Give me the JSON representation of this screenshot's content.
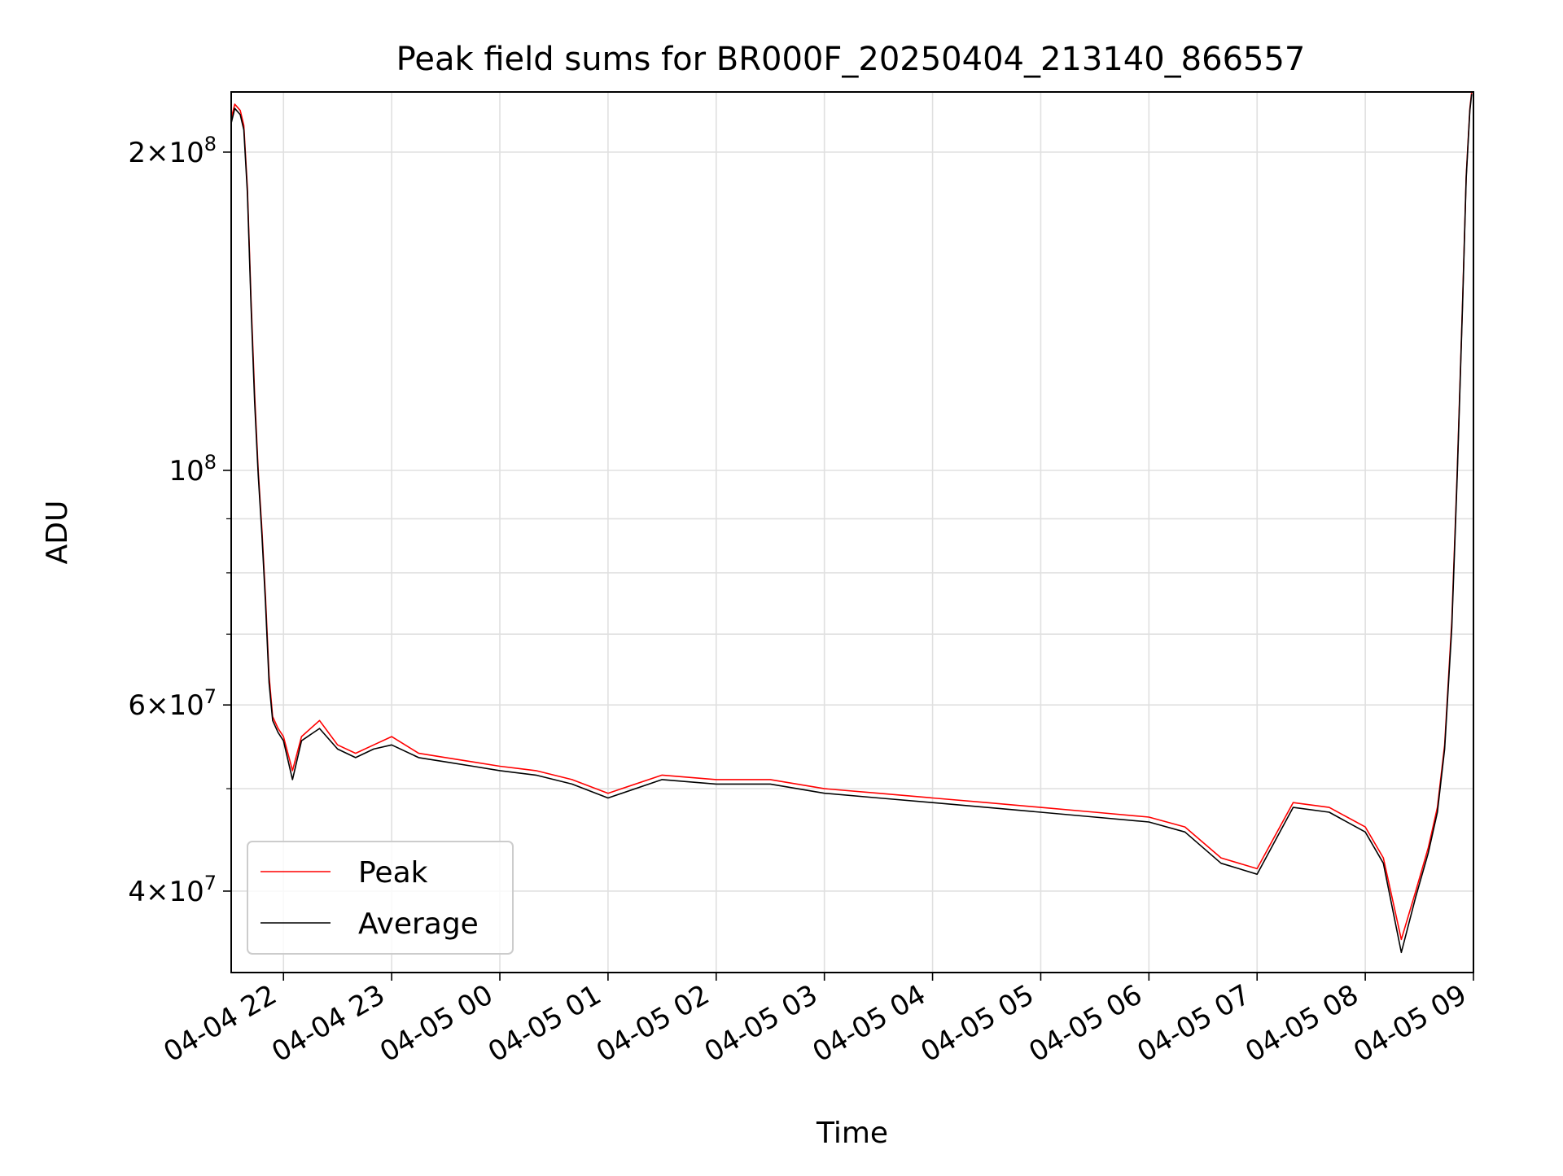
{
  "chart_data": {
    "type": "line",
    "title": "Peak field sums for BR000F_20250404_213140_866557",
    "xlabel": "Time",
    "ylabel": "ADU",
    "x_range": [
      "2025-04-04 21:31",
      "2025-04-05 09:00"
    ],
    "y_scale": "log",
    "ylim": [
      33500000,
      228000000
    ],
    "x_ticks": [
      "04-04 22",
      "04-04 23",
      "04-05 00",
      "04-05 01",
      "04-05 02",
      "04-05 03",
      "04-05 04",
      "04-05 05",
      "04-05 06",
      "04-05 07",
      "04-05 08",
      "04-05 09"
    ],
    "x_tick_times": [
      "2025-04-04 22:00",
      "2025-04-04 23:00",
      "2025-04-05 00:00",
      "2025-04-05 01:00",
      "2025-04-05 02:00",
      "2025-04-05 03:00",
      "2025-04-05 04:00",
      "2025-04-05 05:00",
      "2025-04-05 06:00",
      "2025-04-05 07:00",
      "2025-04-05 08:00",
      "2025-04-05 09:00"
    ],
    "y_ticks": [
      {
        "value": 200000000,
        "mant": "2",
        "exp": "8"
      },
      {
        "value": 100000000,
        "mant": "",
        "exp": "8"
      },
      {
        "value": 60000000,
        "mant": "6",
        "exp": "7"
      },
      {
        "value": 40000000,
        "mant": "4",
        "exp": "7"
      }
    ],
    "y_minor_ticks": [
      90000000,
      80000000,
      70000000,
      50000000
    ],
    "grid": true,
    "legend_position": "lower-left",
    "series": [
      {
        "name": "Peak",
        "color": "#ff0000",
        "points": [
          [
            "2025-04-04 21:31",
            215000000
          ],
          [
            "2025-04-04 21:33",
            222000000
          ],
          [
            "2025-04-04 21:36",
            219000000
          ],
          [
            "2025-04-04 21:38",
            212000000
          ],
          [
            "2025-04-04 21:40",
            185000000
          ],
          [
            "2025-04-04 21:42",
            145000000
          ],
          [
            "2025-04-04 21:44",
            118000000
          ],
          [
            "2025-04-04 21:46",
            100000000
          ],
          [
            "2025-04-04 21:48",
            88000000
          ],
          [
            "2025-04-04 21:50",
            76000000
          ],
          [
            "2025-04-04 21:52",
            64000000
          ],
          [
            "2025-04-04 21:54",
            58500000
          ],
          [
            "2025-04-04 21:57",
            57000000
          ],
          [
            "2025-04-04 22:00",
            56000000
          ],
          [
            "2025-04-04 22:05",
            52000000
          ],
          [
            "2025-04-04 22:10",
            56000000
          ],
          [
            "2025-04-04 22:20",
            58000000
          ],
          [
            "2025-04-04 22:30",
            55000000
          ],
          [
            "2025-04-04 22:40",
            54000000
          ],
          [
            "2025-04-04 22:50",
            55000000
          ],
          [
            "2025-04-04 23:00",
            56000000
          ],
          [
            "2025-04-04 23:15",
            54000000
          ],
          [
            "2025-04-04 23:30",
            53500000
          ],
          [
            "2025-04-04 23:45",
            53000000
          ],
          [
            "2025-04-05 00:00",
            52500000
          ],
          [
            "2025-04-05 00:20",
            52000000
          ],
          [
            "2025-04-05 00:40",
            51000000
          ],
          [
            "2025-04-05 01:00",
            49500000
          ],
          [
            "2025-04-05 01:30",
            51500000
          ],
          [
            "2025-04-05 02:00",
            51000000
          ],
          [
            "2025-04-05 02:30",
            51000000
          ],
          [
            "2025-04-05 03:00",
            50000000
          ],
          [
            "2025-04-05 03:30",
            49500000
          ],
          [
            "2025-04-05 04:00",
            49000000
          ],
          [
            "2025-04-05 04:30",
            48500000
          ],
          [
            "2025-04-05 05:00",
            48000000
          ],
          [
            "2025-04-05 05:30",
            47500000
          ],
          [
            "2025-04-05 06:00",
            47000000
          ],
          [
            "2025-04-05 06:20",
            46000000
          ],
          [
            "2025-04-05 06:40",
            43000000
          ],
          [
            "2025-04-05 07:00",
            42000000
          ],
          [
            "2025-04-05 07:20",
            48500000
          ],
          [
            "2025-04-05 07:40",
            48000000
          ],
          [
            "2025-04-05 08:00",
            46000000
          ],
          [
            "2025-04-05 08:10",
            43000000
          ],
          [
            "2025-04-05 08:20",
            36000000
          ],
          [
            "2025-04-05 08:28",
            40000000
          ],
          [
            "2025-04-05 08:35",
            44000000
          ],
          [
            "2025-04-05 08:40",
            48000000
          ],
          [
            "2025-04-05 08:44",
            55000000
          ],
          [
            "2025-04-05 08:48",
            72000000
          ],
          [
            "2025-04-05 08:51",
            100000000
          ],
          [
            "2025-04-05 08:54",
            145000000
          ],
          [
            "2025-04-05 08:56",
            190000000
          ],
          [
            "2025-04-05 08:58",
            220000000
          ],
          [
            "2025-04-05 08:59",
            228000000
          ]
        ]
      },
      {
        "name": "Average",
        "color": "#000000",
        "points": [
          [
            "2025-04-04 21:31",
            213000000
          ],
          [
            "2025-04-04 21:33",
            220000000
          ],
          [
            "2025-04-04 21:36",
            217000000
          ],
          [
            "2025-04-04 21:38",
            210000000
          ],
          [
            "2025-04-04 21:40",
            183000000
          ],
          [
            "2025-04-04 21:42",
            143000000
          ],
          [
            "2025-04-04 21:44",
            116000000
          ],
          [
            "2025-04-04 21:46",
            99000000
          ],
          [
            "2025-04-04 21:48",
            87000000
          ],
          [
            "2025-04-04 21:50",
            75000000
          ],
          [
            "2025-04-04 21:52",
            63000000
          ],
          [
            "2025-04-04 21:54",
            58000000
          ],
          [
            "2025-04-04 21:57",
            56500000
          ],
          [
            "2025-04-04 22:00",
            55500000
          ],
          [
            "2025-04-04 22:05",
            51000000
          ],
          [
            "2025-04-04 22:10",
            55500000
          ],
          [
            "2025-04-04 22:20",
            57000000
          ],
          [
            "2025-04-04 22:30",
            54500000
          ],
          [
            "2025-04-04 22:40",
            53500000
          ],
          [
            "2025-04-04 22:50",
            54500000
          ],
          [
            "2025-04-04 23:00",
            55000000
          ],
          [
            "2025-04-04 23:15",
            53500000
          ],
          [
            "2025-04-04 23:30",
            53000000
          ],
          [
            "2025-04-04 23:45",
            52500000
          ],
          [
            "2025-04-05 00:00",
            52000000
          ],
          [
            "2025-04-05 00:20",
            51500000
          ],
          [
            "2025-04-05 00:40",
            50500000
          ],
          [
            "2025-04-05 01:00",
            49000000
          ],
          [
            "2025-04-05 01:30",
            51000000
          ],
          [
            "2025-04-05 02:00",
            50500000
          ],
          [
            "2025-04-05 02:30",
            50500000
          ],
          [
            "2025-04-05 03:00",
            49500000
          ],
          [
            "2025-04-05 03:30",
            49000000
          ],
          [
            "2025-04-05 04:00",
            48500000
          ],
          [
            "2025-04-05 04:30",
            48000000
          ],
          [
            "2025-04-05 05:00",
            47500000
          ],
          [
            "2025-04-05 05:30",
            47000000
          ],
          [
            "2025-04-05 06:00",
            46500000
          ],
          [
            "2025-04-05 06:20",
            45500000
          ],
          [
            "2025-04-05 06:40",
            42500000
          ],
          [
            "2025-04-05 07:00",
            41500000
          ],
          [
            "2025-04-05 07:20",
            48000000
          ],
          [
            "2025-04-05 07:40",
            47500000
          ],
          [
            "2025-04-05 08:00",
            45500000
          ],
          [
            "2025-04-05 08:10",
            42500000
          ],
          [
            "2025-04-05 08:20",
            35000000
          ],
          [
            "2025-04-05 08:28",
            39500000
          ],
          [
            "2025-04-05 08:35",
            43500000
          ],
          [
            "2025-04-05 08:40",
            47500000
          ],
          [
            "2025-04-05 08:44",
            54500000
          ],
          [
            "2025-04-05 08:48",
            71000000
          ],
          [
            "2025-04-05 08:51",
            99000000
          ],
          [
            "2025-04-05 08:54",
            144000000
          ],
          [
            "2025-04-05 08:56",
            189000000
          ],
          [
            "2025-04-05 08:58",
            219000000
          ],
          [
            "2025-04-05 08:59",
            227000000
          ]
        ]
      }
    ]
  }
}
